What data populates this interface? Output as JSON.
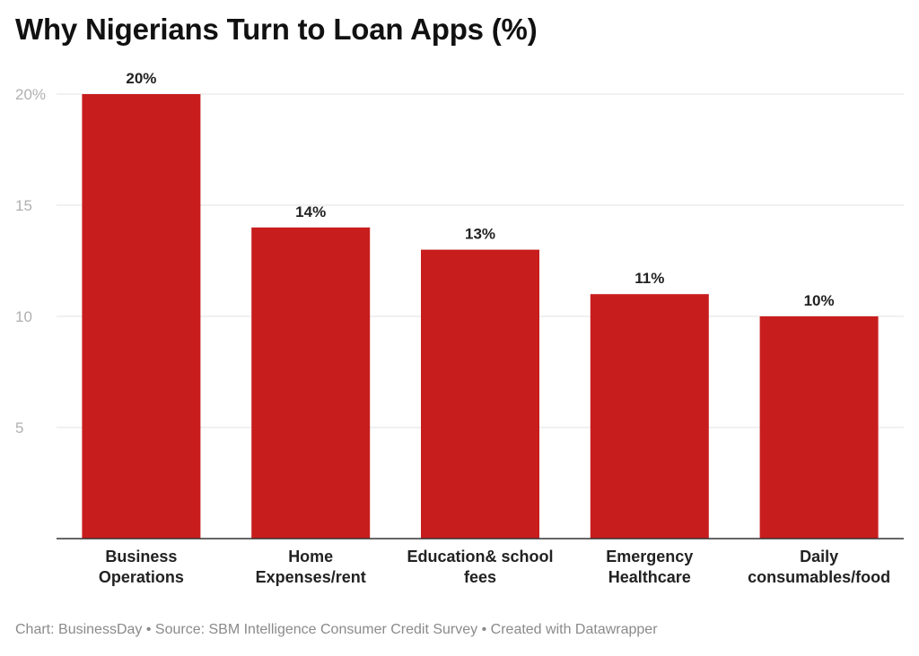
{
  "title": "Why Nigerians Turn to Loan Apps (%)",
  "footer": {
    "chart_credit": "Chart: BusinessDay",
    "source": "Source: SBM Intelligence Consumer Credit Survey",
    "created_with": "Created with Datawrapper"
  },
  "colors": {
    "bar": "#c81d1d",
    "grid": "#e3e3e3",
    "axis": "#333333"
  },
  "chart_data": {
    "type": "bar",
    "title": "Why Nigerians Turn to Loan Apps (%)",
    "categories": [
      "Business Operations",
      "Home Expenses/rent",
      "Education& school fees",
      "Emergency Healthcare",
      "Daily consumables/food"
    ],
    "category_lines": [
      [
        "Business",
        "Operations"
      ],
      [
        "Home",
        "Expenses/rent"
      ],
      [
        "Education& school",
        "fees"
      ],
      [
        "Emergency",
        "Healthcare"
      ],
      [
        "Daily",
        "consumables/food"
      ]
    ],
    "values": [
      20,
      14,
      13,
      11,
      10
    ],
    "value_labels": [
      "20%",
      "14%",
      "13%",
      "11%",
      "10%"
    ],
    "y_ticks": [
      5,
      10,
      15,
      20
    ],
    "y_tick_labels": [
      "5",
      "10",
      "15",
      "20%"
    ],
    "ylim": [
      0,
      20
    ],
    "xlabel": "",
    "ylabel": "",
    "grid": true,
    "legend": "none"
  }
}
